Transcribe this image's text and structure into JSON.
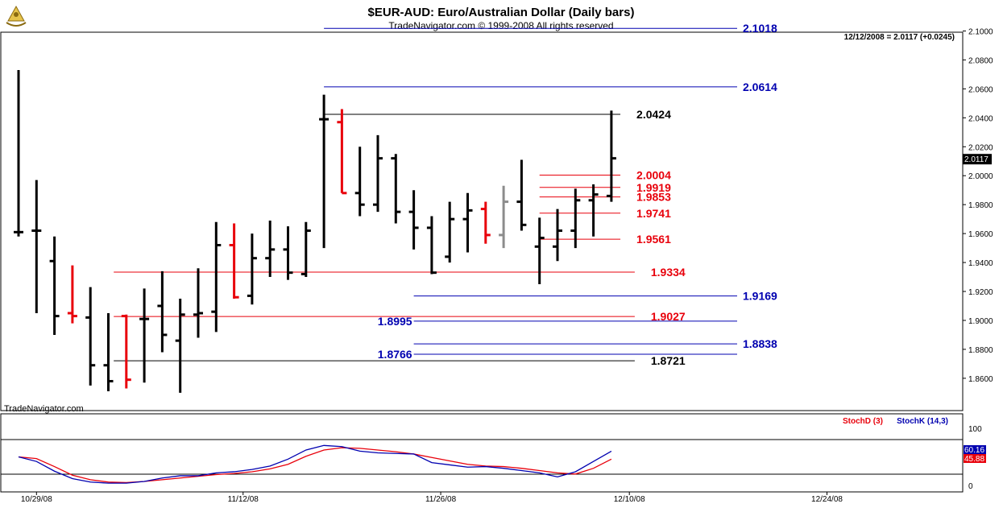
{
  "header": {
    "title": "$EUR-AUD:  Euro/Australian Dollar  (Daily bars)",
    "subtitle": "TradeNavigator.com © 1999-2008 All rights reserved",
    "last_quote": "12/12/2008 = 2.0117 (+0.0245)",
    "logo_icon": "sextant-logo-icon"
  },
  "watermark": "TradeNavigator.com",
  "colors": {
    "black": "#000000",
    "red": "#e8000b",
    "gray": "#8c8c8c",
    "blue": "#0000b0",
    "panel_border": "#000000"
  },
  "chart_data": {
    "type": "ohlc",
    "price_axis": {
      "ylim": [
        1.85,
        2.11
      ],
      "ticks": [
        "2.1000",
        "2.0800",
        "2.0600",
        "2.0400",
        "2.0200",
        "2.0000",
        "1.9800",
        "1.9600",
        "1.9400",
        "1.9200",
        "1.9000",
        "1.8800",
        "1.8600"
      ],
      "current_price_label": "2.0117"
    },
    "date_axis": {
      "labels": [
        "10/29/08",
        "11/12/08",
        "11/26/08",
        "12/10/08",
        "12/24/08"
      ],
      "label_bar_index": [
        1,
        12.5,
        23.5,
        34,
        45
      ]
    },
    "bars": [
      {
        "o": 1.961,
        "h": 2.073,
        "l": 1.958,
        "c": 1.961,
        "color": "black"
      },
      {
        "o": 1.962,
        "h": 1.997,
        "l": 1.905,
        "c": 1.962,
        "color": "black"
      },
      {
        "o": 1.941,
        "h": 1.958,
        "l": 1.89,
        "c": 1.903,
        "color": "black"
      },
      {
        "o": 1.905,
        "h": 1.938,
        "l": 1.898,
        "c": 1.903,
        "color": "red"
      },
      {
        "o": 1.902,
        "h": 1.923,
        "l": 1.855,
        "c": 1.869,
        "color": "black"
      },
      {
        "o": 1.869,
        "h": 1.905,
        "l": 1.851,
        "c": 1.858,
        "color": "black"
      },
      {
        "o": 1.903,
        "h": 1.904,
        "l": 1.853,
        "c": 1.859,
        "color": "red"
      },
      {
        "o": 1.901,
        "h": 1.922,
        "l": 1.857,
        "c": 1.901,
        "color": "black"
      },
      {
        "o": 1.91,
        "h": 1.934,
        "l": 1.878,
        "c": 1.89,
        "color": "black"
      },
      {
        "o": 1.886,
        "h": 1.915,
        "l": 1.85,
        "c": 1.904,
        "color": "black"
      },
      {
        "o": 1.904,
        "h": 1.936,
        "l": 1.888,
        "c": 1.905,
        "color": "black"
      },
      {
        "o": 1.906,
        "h": 1.968,
        "l": 1.892,
        "c": 1.952,
        "color": "black"
      },
      {
        "o": 1.952,
        "h": 1.967,
        "l": 1.915,
        "c": 1.916,
        "color": "red"
      },
      {
        "o": 1.917,
        "h": 1.96,
        "l": 1.911,
        "c": 1.943,
        "color": "black"
      },
      {
        "o": 1.943,
        "h": 1.969,
        "l": 1.93,
        "c": 1.949,
        "color": "black"
      },
      {
        "o": 1.949,
        "h": 1.965,
        "l": 1.928,
        "c": 1.933,
        "color": "black"
      },
      {
        "o": 1.932,
        "h": 1.968,
        "l": 1.93,
        "c": 1.962,
        "color": "black"
      },
      {
        "o": 2.039,
        "h": 2.056,
        "l": 1.95,
        "c": 2.039,
        "color": "black"
      },
      {
        "o": 2.037,
        "h": 2.046,
        "l": 1.988,
        "c": 1.988,
        "color": "red"
      },
      {
        "o": 1.988,
        "h": 2.02,
        "l": 1.972,
        "c": 1.98,
        "color": "black"
      },
      {
        "o": 1.98,
        "h": 2.028,
        "l": 1.975,
        "c": 2.012,
        "color": "black"
      },
      {
        "o": 2.012,
        "h": 2.015,
        "l": 1.967,
        "c": 1.975,
        "color": "black"
      },
      {
        "o": 1.975,
        "h": 1.99,
        "l": 1.949,
        "c": 1.964,
        "color": "black"
      },
      {
        "o": 1.964,
        "h": 1.972,
        "l": 1.932,
        "c": 1.933,
        "color": "black"
      },
      {
        "o": 1.944,
        "h": 1.982,
        "l": 1.94,
        "c": 1.97,
        "color": "black"
      },
      {
        "o": 1.97,
        "h": 1.988,
        "l": 1.947,
        "c": 1.976,
        "color": "black"
      },
      {
        "o": 1.977,
        "h": 1.982,
        "l": 1.953,
        "c": 1.959,
        "color": "red"
      },
      {
        "o": 1.959,
        "h": 1.993,
        "l": 1.95,
        "c": 1.982,
        "color": "gray"
      },
      {
        "o": 1.982,
        "h": 2.011,
        "l": 1.962,
        "c": 1.966,
        "color": "black"
      },
      {
        "o": 1.951,
        "h": 1.971,
        "l": 1.925,
        "c": 1.957,
        "color": "black"
      },
      {
        "o": 1.951,
        "h": 1.977,
        "l": 1.941,
        "c": 1.962,
        "color": "black"
      },
      {
        "o": 1.962,
        "h": 1.991,
        "l": 1.95,
        "c": 1.983,
        "color": "black"
      },
      {
        "o": 1.983,
        "h": 1.994,
        "l": 1.958,
        "c": 1.987,
        "color": "black"
      },
      {
        "o": 1.986,
        "h": 2.045,
        "l": 1.982,
        "c": 2.012,
        "color": "black"
      }
    ],
    "levels": [
      {
        "value": 2.1018,
        "label": "2.1018",
        "color": "blue",
        "from": 17.0,
        "to": 40.0,
        "label_side": "right"
      },
      {
        "value": 2.0614,
        "label": "2.0614",
        "color": "blue",
        "from": 17.0,
        "to": 40.0,
        "label_side": "right"
      },
      {
        "value": 2.0424,
        "label": "2.0424",
        "color": "black",
        "from": 17.0,
        "to": 33.5,
        "label_side": "right"
      },
      {
        "value": 2.0004,
        "label": "2.0004",
        "color": "red",
        "from": 29.0,
        "to": 33.5,
        "label_side": "right"
      },
      {
        "value": 1.9919,
        "label": "1.9919",
        "color": "red",
        "from": 29.0,
        "to": 33.5,
        "label_side": "right"
      },
      {
        "value": 1.9853,
        "label": "1.9853",
        "color": "red",
        "from": 29.0,
        "to": 33.5,
        "label_side": "right"
      },
      {
        "value": 1.9741,
        "label": "1.9741",
        "color": "red",
        "from": 29.0,
        "to": 33.5,
        "label_side": "right"
      },
      {
        "value": 1.9561,
        "label": "1.9561",
        "color": "red",
        "from": 29.0,
        "to": 33.5,
        "label_side": "right"
      },
      {
        "value": 1.9334,
        "label": "1.9334",
        "color": "red",
        "from": 5.3,
        "to": 34.3,
        "label_side": "right"
      },
      {
        "value": 1.9169,
        "label": "1.9169",
        "color": "blue",
        "from": 22.0,
        "to": 40.0,
        "label_side": "right"
      },
      {
        "value": 1.9027,
        "label": "1.9027",
        "color": "red",
        "from": 5.3,
        "to": 34.3,
        "label_side": "right"
      },
      {
        "value": 1.8995,
        "label": "1.8995",
        "color": "blue",
        "from": 22.0,
        "to": 40.0,
        "label_side": "left"
      },
      {
        "value": 1.8838,
        "label": "1.8838",
        "color": "blue",
        "from": 22.0,
        "to": 40.0,
        "label_side": "right"
      },
      {
        "value": 1.8766,
        "label": "1.8766",
        "color": "blue",
        "from": 22.0,
        "to": 40.0,
        "label_side": "left"
      },
      {
        "value": 1.8721,
        "label": "1.8721",
        "color": "black",
        "from": 5.3,
        "to": 34.3,
        "label_side": "right"
      }
    ],
    "stochastic": {
      "ylim": [
        0,
        100
      ],
      "ticks": [
        "100",
        "0"
      ],
      "legend": [
        {
          "name": "StochD (3)",
          "color": "red"
        },
        {
          "name": "StochK (14,3)",
          "color": "blue"
        }
      ],
      "last_k": "60.16",
      "last_d": "45.88",
      "k": [
        50,
        42,
        25,
        12,
        6,
        4,
        4,
        7,
        13,
        17,
        17,
        22,
        24,
        28,
        34,
        46,
        62,
        70,
        68,
        60,
        57,
        56,
        55,
        40,
        36,
        32,
        33,
        30,
        26,
        22,
        15,
        24,
        42,
        60
      ],
      "d": [
        50,
        47,
        33,
        18,
        10,
        6,
        5,
        7,
        10,
        13,
        16,
        19,
        21,
        24,
        29,
        37,
        51,
        62,
        66,
        65,
        62,
        59,
        55,
        49,
        43,
        37,
        34,
        33,
        30,
        26,
        22,
        20,
        30,
        46
      ]
    }
  }
}
